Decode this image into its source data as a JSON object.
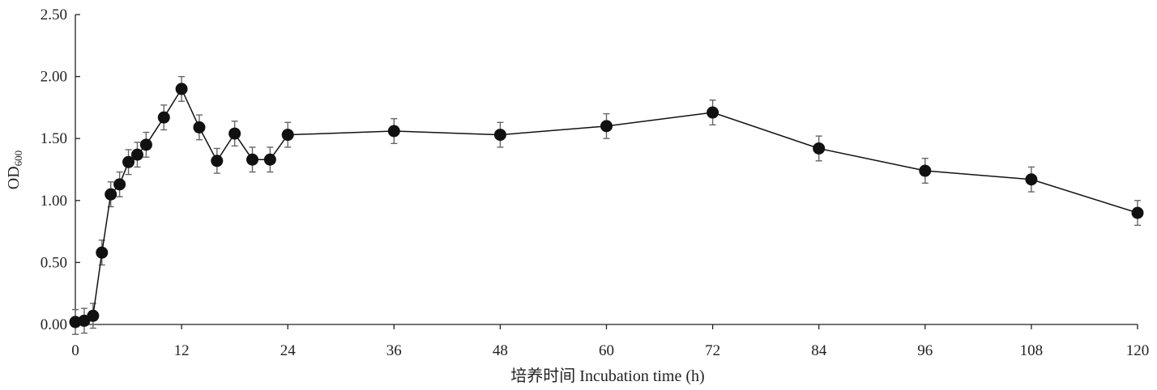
{
  "chart_data": {
    "type": "line",
    "title": "",
    "xlabel": "培养时间 Incubation time (h)",
    "ylabel": {
      "main": "OD",
      "sub": "600"
    },
    "xlim": [
      0,
      120
    ],
    "ylim": [
      0,
      2.5
    ],
    "xticks": [
      0,
      12,
      24,
      36,
      48,
      60,
      72,
      84,
      96,
      108,
      120
    ],
    "xtick_labels": [
      "0",
      "12",
      "24",
      "36",
      "48",
      "60",
      "72",
      "84",
      "96",
      "108",
      "120"
    ],
    "yticks": [
      0,
      0.5,
      1.0,
      1.5,
      2.0,
      2.5
    ],
    "ytick_labels": [
      "0.00",
      "0.50",
      "1.00",
      "1.50",
      "2.00",
      "2.50"
    ],
    "grid": false,
    "legend": "none",
    "colors": {
      "marker": "#111111",
      "line": "#111111",
      "error_bar": "#666666",
      "axis": "#222222"
    },
    "series": [
      {
        "marker": "filled-circle",
        "x": [
          0,
          1,
          2,
          3,
          4,
          5,
          6,
          7,
          8,
          10,
          12,
          14,
          16,
          18,
          20,
          22,
          24,
          36,
          48,
          60,
          72,
          84,
          96,
          108,
          120
        ],
        "y": [
          0.02,
          0.03,
          0.07,
          0.58,
          1.05,
          1.13,
          1.31,
          1.37,
          1.45,
          1.67,
          1.9,
          1.59,
          1.32,
          1.54,
          1.33,
          1.33,
          1.53,
          1.56,
          1.53,
          1.6,
          1.71,
          1.42,
          1.24,
          1.17,
          0.9
        ],
        "error": [
          0.1,
          0.1,
          0.1,
          0.1,
          0.1,
          0.1,
          0.1,
          0.1,
          0.1,
          0.1,
          0.1,
          0.1,
          0.1,
          0.1,
          0.1,
          0.1,
          0.1,
          0.1,
          0.1,
          0.1,
          0.1,
          0.1,
          0.1,
          0.1,
          0.1
        ]
      }
    ]
  }
}
